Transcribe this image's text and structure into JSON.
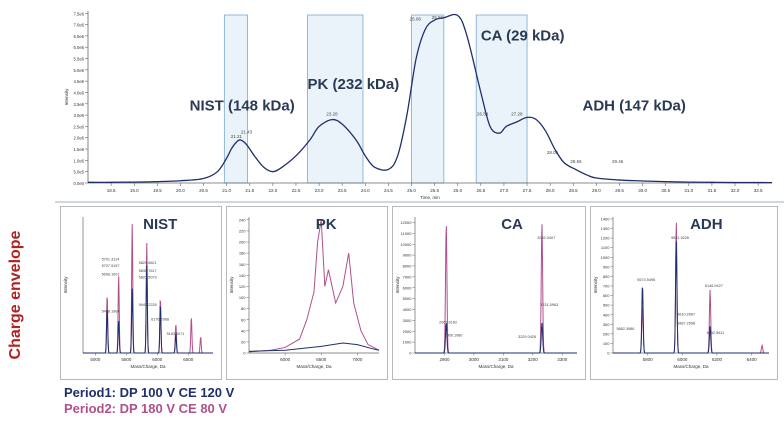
{
  "chart_data": [
    {
      "type": "line",
      "xlabel": "Time, min",
      "ylabel": "Intensity",
      "xlim": [
        18.0,
        32.8
      ],
      "ylim": [
        0,
        7600000
      ],
      "xticks": [
        "18.5",
        "19.0",
        "19.5",
        "20.0",
        "20.5",
        "21.0",
        "21.5",
        "22.0",
        "22.5",
        "23.0",
        "23.5",
        "24.0",
        "24.5",
        "25.0",
        "25.5",
        "26.0",
        "26.5",
        "27.0",
        "27.5",
        "28.0",
        "28.5",
        "29.0",
        "29.5",
        "30.0",
        "30.5",
        "31.0",
        "31.5",
        "32.0",
        "32.5"
      ],
      "yticks": [
        "0.0e0",
        "5.0e5",
        "1.0e6",
        "1.5e6",
        "2.0e6",
        "2.5e6",
        "3.0e6",
        "3.5e6",
        "4.0e6",
        "4.5e6",
        "5.0e6",
        "5.5e6",
        "6.0e6",
        "6.5e6",
        "7.0e6",
        "7.5e6"
      ],
      "trace": {
        "x": [
          18.0,
          18.5,
          19.0,
          19.5,
          20.0,
          20.5,
          20.8,
          21.0,
          21.1,
          21.21,
          21.3,
          21.43,
          21.6,
          21.8,
          22.0,
          22.2,
          22.5,
          22.8,
          23.0,
          23.28,
          23.5,
          23.8,
          24.0,
          24.2,
          24.5,
          24.7,
          24.9,
          25.1,
          25.3,
          25.5,
          25.7,
          26.0,
          26.2,
          26.5,
          26.7,
          26.9,
          27.05,
          27.28,
          27.5,
          27.7,
          27.9,
          28.1,
          28.3,
          28.55,
          28.8,
          29.0,
          29.5,
          30.0,
          30.5,
          31.0,
          31.5,
          32.0,
          32.5,
          32.8
        ],
        "y": [
          30000,
          30000,
          40000,
          60000,
          100000,
          200000,
          500000,
          1100000,
          1500000,
          1800000,
          1900000,
          1700000,
          1200000,
          700000,
          500000,
          700000,
          1200000,
          1900000,
          2500000,
          2800000,
          2600000,
          1900000,
          1200000,
          700000,
          600000,
          1200000,
          3000000,
          5500000,
          6800000,
          7200000,
          7300000,
          7400000,
          6500000,
          4000000,
          2500000,
          2200000,
          2500000,
          2700000,
          2900000,
          2800000,
          2300000,
          1500000,
          900000,
          600000,
          350000,
          220000,
          130000,
          90000,
          60000,
          40000,
          30000,
          20000,
          20000,
          15000
        ]
      },
      "peak_labels": [
        {
          "x": 21.21,
          "y": 1900000,
          "text": "21.21"
        },
        {
          "x": 21.43,
          "y": 2100000,
          "text": "21.43"
        },
        {
          "x": 23.28,
          "y": 2900000,
          "text": "23.28"
        },
        {
          "x": 25.08,
          "y": 7100000,
          "text": "25.08"
        },
        {
          "x": 25.56,
          "y": 7150000,
          "text": "25.56"
        },
        {
          "x": 26.54,
          "y": 2900000,
          "text": "26.54"
        },
        {
          "x": 27.28,
          "y": 2900000,
          "text": "27.28"
        },
        {
          "x": 28.05,
          "y": 1200000,
          "text": "28.05"
        },
        {
          "x": 28.56,
          "y": 800000,
          "text": "28.56"
        },
        {
          "x": 29.46,
          "y": 800000,
          "text": "29.46"
        }
      ],
      "windows": [
        [
          20.95,
          21.45
        ],
        [
          22.75,
          23.95
        ],
        [
          25.0,
          25.7
        ],
        [
          26.4,
          27.5
        ]
      ],
      "annotations": [
        {
          "text": "NIST (148 kDa)",
          "x": 20.2,
          "y": 3200000
        },
        {
          "text": "PK (232 kDa)",
          "x": 22.75,
          "y": 4150000
        },
        {
          "text": "CA (29 kDa)",
          "x": 26.5,
          "y": 6300000
        },
        {
          "text": "ADH (147 kDa)",
          "x": 28.7,
          "y": 3200000
        }
      ]
    },
    {
      "type": "line",
      "title": "NIST",
      "xlabel": "Mass/Charge, Da",
      "ylabel": "Intensity",
      "xlim": [
        4800,
        6900
      ],
      "ylim": [
        0,
        420
      ],
      "xticks": [
        "5000",
        "5500",
        "6000",
        "6500"
      ],
      "period1_peaks": [
        [
          5190,
          140
        ],
        [
          5376,
          100
        ],
        [
          5595,
          200
        ],
        [
          5830,
          270
        ],
        [
          6050,
          150
        ],
        [
          6300,
          60
        ]
      ],
      "period2_peaks": [
        [
          5190,
          180
        ],
        [
          5376,
          240
        ],
        [
          5595,
          400
        ],
        [
          5830,
          340
        ],
        [
          6050,
          170
        ],
        [
          6300,
          90
        ],
        [
          6550,
          110
        ],
        [
          6700,
          50
        ]
      ],
      "labels": [
        {
          "x": 5100,
          "y": 285,
          "text": "5701.3114"
        },
        {
          "x": 5100,
          "y": 265,
          "text": "5707.5197"
        },
        {
          "x": 5100,
          "y": 240,
          "text": "5696.1001"
        },
        {
          "x": 5100,
          "y": 125,
          "text": "5498.1964"
        },
        {
          "x": 5700,
          "y": 275,
          "text": "5829.5621"
        },
        {
          "x": 5700,
          "y": 250,
          "text": "5835.7617"
        },
        {
          "x": 5700,
          "y": 230,
          "text": "5822.5073"
        },
        {
          "x": 5700,
          "y": 145,
          "text": "5942.2228"
        },
        {
          "x": 5900,
          "y": 100,
          "text": "6176.2968"
        },
        {
          "x": 6150,
          "y": 55,
          "text": "5183.0071"
        }
      ]
    },
    {
      "type": "line",
      "title": "PK",
      "xlabel": "Mass/Charge, Da",
      "ylabel": "Intensity",
      "xlim": [
        5500,
        7300
      ],
      "ylim": [
        0,
        245
      ],
      "xticks": [
        "6000",
        "6500",
        "7000"
      ],
      "yticks": [
        "0",
        "20",
        "40",
        "60",
        "80",
        "100",
        "120",
        "140",
        "160",
        "180",
        "200",
        "220",
        "240"
      ],
      "period1_env": [
        [
          5500,
          3
        ],
        [
          6000,
          5
        ],
        [
          6500,
          12
        ],
        [
          6800,
          18
        ],
        [
          7000,
          15
        ],
        [
          7200,
          8
        ],
        [
          7300,
          5
        ]
      ],
      "period2_env": [
        [
          5500,
          2
        ],
        [
          5800,
          5
        ],
        [
          6000,
          10
        ],
        [
          6200,
          25
        ],
        [
          6300,
          60
        ],
        [
          6400,
          110
        ],
        [
          6450,
          200
        ],
        [
          6500,
          240
        ],
        [
          6550,
          120
        ],
        [
          6600,
          150
        ],
        [
          6700,
          90
        ],
        [
          6800,
          120
        ],
        [
          6880,
          180
        ],
        [
          6950,
          90
        ],
        [
          7050,
          40
        ],
        [
          7150,
          15
        ],
        [
          7300,
          5
        ]
      ]
    },
    {
      "type": "line",
      "title": "CA",
      "xlabel": "Mass/Charge, Da",
      "ylabel": "Intensity",
      "xlim": [
        2800,
        3350
      ],
      "ylim": [
        0,
        12500
      ],
      "xticks": [
        "2900",
        "3000",
        "3100",
        "3200",
        "3300"
      ],
      "yticks": [
        "0",
        "1000",
        "2000",
        "3000",
        "4000",
        "5000",
        "6000",
        "7000",
        "8000",
        "9000",
        "10000",
        "11000",
        "12000"
      ],
      "period1_peaks": [
        [
          2906,
          2800
        ],
        [
          3231,
          2800
        ]
      ],
      "period2_peaks": [
        [
          2906,
          12000
        ],
        [
          3231,
          12000
        ]
      ],
      "labels": [
        {
          "x": 2882,
          "y": 2700,
          "text": "2905.0162"
        },
        {
          "x": 2900,
          "y": 1500,
          "text": "2906.1080"
        },
        {
          "x": 3215,
          "y": 10500,
          "text": "3232.0407"
        },
        {
          "x": 3225,
          "y": 4300,
          "text": "3231.5963"
        },
        {
          "x": 3150,
          "y": 1400,
          "text": "3229.0428"
        }
      ]
    },
    {
      "type": "line",
      "title": "ADH",
      "xlabel": "Mass/Charge, Da",
      "ylabel": "Intensity",
      "xlim": [
        5600,
        6500
      ],
      "ylim": [
        0,
        1420
      ],
      "xticks": [
        "5800",
        "6000",
        "6200",
        "6400"
      ],
      "yticks": [
        "0",
        "100",
        "200",
        "300",
        "400",
        "500",
        "600",
        "700",
        "800",
        "900",
        "1000",
        "1100",
        "1200",
        "1300",
        "1400"
      ],
      "period1_peaks": [
        [
          5770,
          720
        ],
        [
          5965,
          1180
        ],
        [
          6160,
          280
        ]
      ],
      "period2_peaks": [
        [
          5770,
          500
        ],
        [
          5965,
          1380
        ],
        [
          6160,
          660
        ],
        [
          6460,
          80
        ]
      ],
      "labels": [
        {
          "x": 5740,
          "y": 750,
          "text": "5574.5496"
        },
        {
          "x": 5935,
          "y": 1190,
          "text": "5961.5226"
        },
        {
          "x": 6130,
          "y": 690,
          "text": "6146.9427"
        },
        {
          "x": 5970,
          "y": 390,
          "text": "5610.2667"
        },
        {
          "x": 5970,
          "y": 300,
          "text": "5887.2598"
        },
        {
          "x": 6140,
          "y": 200,
          "text": "6152.9611"
        },
        {
          "x": 5620,
          "y": 240,
          "text": "5682.3986"
        }
      ]
    }
  ],
  "colors": {
    "trace": "#1f2f6b",
    "period1": "#1f2f6b",
    "period2": "#b0508c",
    "window_fill": "#d9eaf6",
    "window_stroke": "#7aa9d0",
    "annotation": "#2a3a55",
    "envelope_label": "#b22222"
  },
  "side_label": "Charge envelope",
  "legend": {
    "period1": "Period1: DP 100 V CE 120 V",
    "period2": "Period2: DP 180 V CE 80 V"
  }
}
